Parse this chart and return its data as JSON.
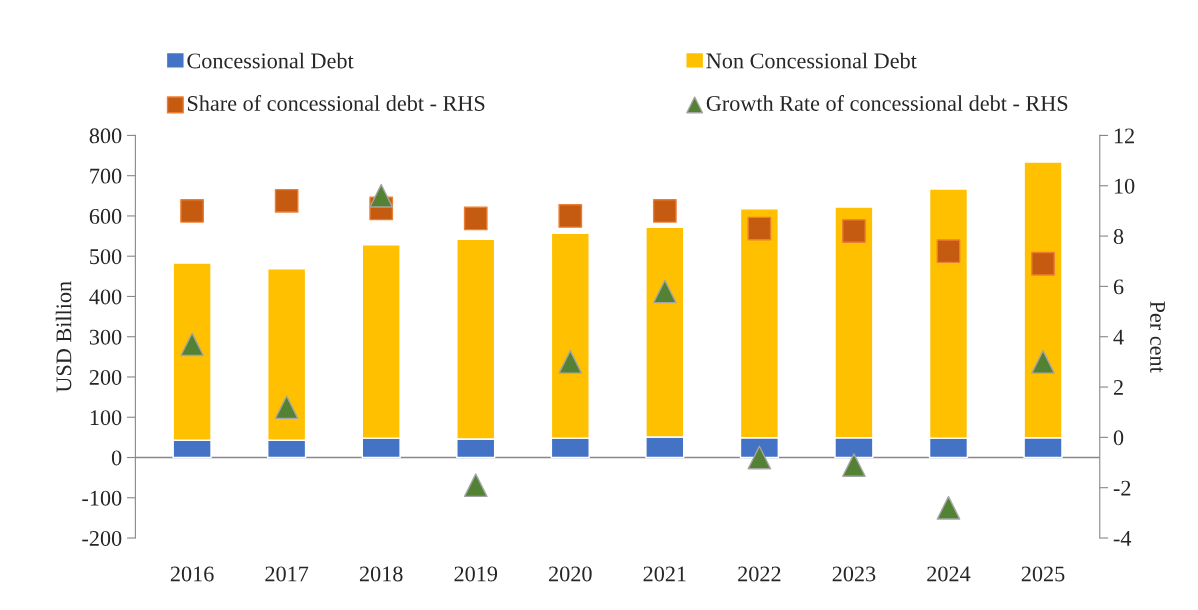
{
  "chart_data": {
    "type": "bar",
    "stacked": true,
    "ylabel": "USD Billion",
    "y2label": "Per cent",
    "categories": [
      "2016",
      "2017",
      "2018",
      "2019",
      "2020",
      "2021",
      "2022",
      "2023",
      "2024",
      "2025"
    ],
    "series": [
      {
        "name": "Concessional Debt",
        "color": "#4472c4",
        "values": [
          43,
          43,
          48,
          46,
          48,
          51,
          49,
          49,
          48,
          49
        ]
      },
      {
        "name": "Non Concessional Debt",
        "color": "#ffc000",
        "values": [
          440,
          426,
          480,
          496,
          509,
          521,
          569,
          573,
          619,
          685
        ]
      },
      {
        "name": "Share of concessional debt - RHS",
        "type": "scatter",
        "marker": "square",
        "axis": "y2",
        "color": "#c55a11",
        "values": [
          9.0,
          9.4,
          9.1,
          8.7,
          8.8,
          9.0,
          8.3,
          8.2,
          7.4,
          6.9
        ]
      },
      {
        "name": "Growth Rate of concessional debt - RHS",
        "type": "scatter",
        "marker": "triangle",
        "axis": "y2",
        "color": "#548235",
        "values": [
          3.7,
          1.2,
          9.6,
          -1.9,
          3.0,
          5.8,
          -0.8,
          -1.1,
          -2.8,
          3.0
        ]
      }
    ],
    "ylim": [
      -200,
      800
    ],
    "yticks": [
      -200,
      -100,
      0,
      100,
      200,
      300,
      400,
      500,
      600,
      700,
      800
    ],
    "y2lim": [
      -4,
      12
    ],
    "y2ticks": [
      -4,
      -2,
      0,
      2,
      4,
      6,
      8,
      10,
      12
    ],
    "legend": "top"
  }
}
